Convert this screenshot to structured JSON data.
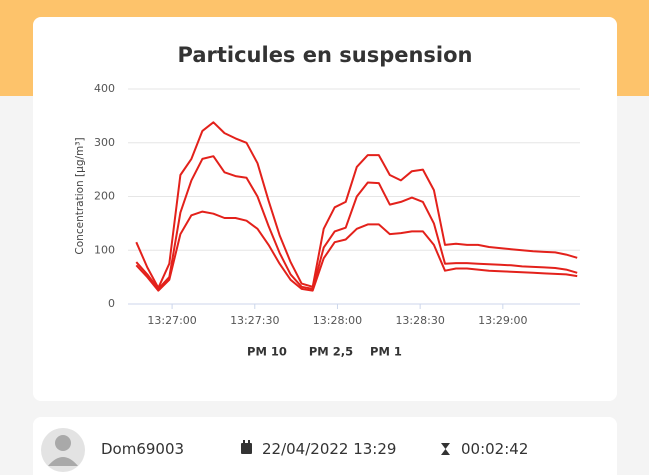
{
  "chart_data": {
    "type": "line",
    "title": "Particules en suspension",
    "ylabel": "Concentration [µg/m³]",
    "x": [
      "13:26:47",
      "13:26:51",
      "13:26:55",
      "13:26:59",
      "13:27:03",
      "13:27:07",
      "13:27:11",
      "13:27:15",
      "13:27:19",
      "13:27:23",
      "13:27:27",
      "13:27:31",
      "13:27:35",
      "13:27:39",
      "13:27:43",
      "13:27:47",
      "13:27:51",
      "13:27:55",
      "13:27:59",
      "13:28:03",
      "13:28:07",
      "13:28:11",
      "13:28:15",
      "13:28:19",
      "13:28:23",
      "13:28:27",
      "13:28:31",
      "13:28:35",
      "13:28:39",
      "13:28:43",
      "13:28:47",
      "13:28:51",
      "13:28:55",
      "13:28:59",
      "13:29:03",
      "13:29:07",
      "13:29:11",
      "13:29:15",
      "13:29:19",
      "13:29:23",
      "13:29:27"
    ],
    "series": [
      {
        "name": "PM 10",
        "color": "#e3211b",
        "values": [
          115,
          68,
          30,
          75,
          240,
          270,
          322,
          338,
          318,
          308,
          300,
          262,
          192,
          128,
          78,
          38,
          32,
          140,
          180,
          190,
          255,
          277,
          277,
          240,
          230,
          247,
          250,
          212,
          110,
          112,
          110,
          110,
          106,
          104,
          102,
          100,
          98,
          97,
          96,
          92,
          86
        ]
      },
      {
        "name": "PM 2,5",
        "color": "#e3211b",
        "values": [
          78,
          55,
          28,
          50,
          170,
          230,
          270,
          275,
          245,
          238,
          235,
          200,
          145,
          95,
          55,
          32,
          28,
          105,
          135,
          142,
          200,
          226,
          225,
          185,
          190,
          198,
          190,
          150,
          75,
          76,
          76,
          75,
          74,
          73,
          72,
          70,
          69,
          68,
          67,
          64,
          58
        ]
      },
      {
        "name": "PM 1",
        "color": "#e3211b",
        "values": [
          72,
          50,
          25,
          45,
          130,
          165,
          172,
          168,
          160,
          160,
          155,
          140,
          110,
          75,
          45,
          28,
          25,
          85,
          115,
          120,
          140,
          148,
          148,
          130,
          132,
          135,
          135,
          110,
          62,
          66,
          66,
          64,
          62,
          61,
          60,
          59,
          58,
          57,
          56,
          55,
          52
        ]
      }
    ],
    "xlim": [
      "13:26:44",
      "13:29:28"
    ],
    "xticks": [
      "13:27:00",
      "13:27:30",
      "13:28:00",
      "13:28:30",
      "13:29:00"
    ],
    "ylim": [
      0,
      400
    ],
    "yticks": [
      0,
      100,
      200,
      300,
      400
    ],
    "grid": true
  },
  "session": {
    "user": "Dom69003",
    "date": "22/04/2022 13:29",
    "duration": "00:02:42"
  }
}
